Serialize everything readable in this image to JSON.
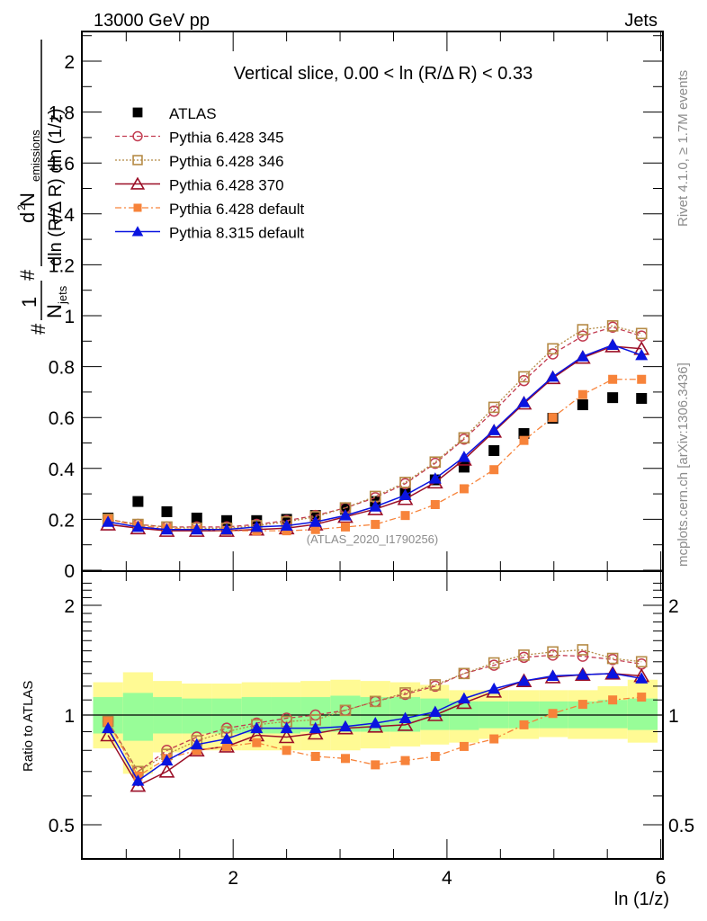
{
  "header": {
    "left_label": "13000 GeV pp",
    "right_label": "Jets"
  },
  "side_labels": {
    "rivet": "Rivet 4.1.0, ≥ 1.7M events",
    "mcplots": "mcplots.cern.ch [arXiv:1306.3436]"
  },
  "watermark": "(ATLAS_2020_I1790256)",
  "chart_data": [
    {
      "panel": "main",
      "type": "line",
      "title": "Vertical slice, 0.00 < ln (R/Δ R) < 0.33",
      "xlabel": "ln (1/z)",
      "ylabel": "1/N_jets d²N_emissions / dln(R/ΔR) dln(1/z)",
      "xlim": [
        0.585,
        6.02
      ],
      "ylim": [
        0,
        2.1
      ],
      "yticks": [
        0,
        0.2,
        0.4,
        0.6,
        0.8,
        1,
        1.2,
        1.4,
        1.6,
        1.8,
        2
      ],
      "ytick_labels": [
        "0",
        "0.2",
        "0.4",
        "0.6",
        "0.8",
        "1",
        "1.2",
        "1.4",
        "1.6",
        "1.8",
        "2"
      ],
      "xticks": [
        2,
        4,
        6
      ],
      "legend_position": "top-left",
      "x": [
        0.83,
        1.11,
        1.38,
        1.66,
        1.94,
        2.22,
        2.5,
        2.77,
        3.05,
        3.33,
        3.61,
        3.89,
        4.16,
        4.44,
        4.72,
        4.99,
        5.27,
        5.55,
        5.82
      ],
      "series": [
        {
          "name": "ATLAS",
          "style": "data",
          "color": "#000000",
          "marker": "square-filled",
          "values": [
            0.205,
            0.27,
            0.23,
            0.205,
            0.195,
            0.195,
            0.2,
            0.215,
            0.24,
            0.27,
            0.305,
            0.355,
            0.405,
            0.47,
            0.537,
            0.597,
            0.65,
            0.678,
            0.675
          ]
        },
        {
          "name": "Pythia 6.428 345",
          "style": "dashed",
          "color": "#c23b50",
          "marker": "circle-open",
          "values": [
            0.2,
            0.18,
            0.17,
            0.17,
            0.17,
            0.18,
            0.195,
            0.215,
            0.245,
            0.285,
            0.34,
            0.42,
            0.515,
            0.625,
            0.745,
            0.85,
            0.92,
            0.955,
            0.92
          ]
        },
        {
          "name": "Pythia 6.428 346",
          "style": "dotted",
          "color": "#b58a45",
          "marker": "square-open",
          "values": [
            0.2,
            0.18,
            0.17,
            0.165,
            0.165,
            0.175,
            0.19,
            0.21,
            0.245,
            0.29,
            0.345,
            0.425,
            0.52,
            0.64,
            0.76,
            0.87,
            0.945,
            0.96,
            0.93
          ]
        },
        {
          "name": "Pythia 6.428 370",
          "style": "solid",
          "color": "#9b0f27",
          "marker": "triangle-open",
          "values": [
            0.18,
            0.165,
            0.155,
            0.155,
            0.155,
            0.16,
            0.165,
            0.18,
            0.21,
            0.24,
            0.28,
            0.345,
            0.435,
            0.545,
            0.655,
            0.755,
            0.835,
            0.88,
            0.87
          ]
        },
        {
          "name": "Pythia 6.428 default",
          "style": "dashdot",
          "color": "#f7833a",
          "marker": "square-filled",
          "values": [
            0.2,
            0.175,
            0.165,
            0.16,
            0.155,
            0.155,
            0.155,
            0.16,
            0.17,
            0.18,
            0.215,
            0.258,
            0.32,
            0.395,
            0.51,
            0.6,
            0.69,
            0.75,
            0.75
          ]
        },
        {
          "name": "Pythia 8.315 default",
          "style": "solid",
          "color": "#0a14e0",
          "marker": "triangle-filled",
          "values": [
            0.19,
            0.17,
            0.16,
            0.16,
            0.16,
            0.17,
            0.175,
            0.19,
            0.215,
            0.25,
            0.295,
            0.36,
            0.445,
            0.55,
            0.66,
            0.76,
            0.84,
            0.885,
            0.845
          ]
        }
      ]
    },
    {
      "panel": "ratio",
      "type": "line",
      "ylabel": "Ratio to ATLAS",
      "xlabel": "ln (1/z)",
      "xlim": [
        0.585,
        6.02
      ],
      "ylim": [
        0.35,
        2.4
      ],
      "yscale": "log",
      "yticks": [
        0.5,
        1,
        2
      ],
      "ytick_labels": [
        "0.5",
        "1",
        "2"
      ],
      "xticks": [
        2,
        4,
        6
      ],
      "xtick_labels": [
        "2",
        "4",
        "6"
      ],
      "reference_line": 1,
      "bands": {
        "outer_color": "#fffa94",
        "inner_color": "#98fd98",
        "bin_edges": [
          0.69,
          0.97,
          1.25,
          1.52,
          1.8,
          2.08,
          2.36,
          2.63,
          2.91,
          3.19,
          3.47,
          3.75,
          4.02,
          4.3,
          4.58,
          4.86,
          5.13,
          5.41,
          5.69,
          5.97
        ],
        "outer_low": [
          0.81,
          0.69,
          0.79,
          0.8,
          0.8,
          0.8,
          0.8,
          0.8,
          0.8,
          0.81,
          0.82,
          0.83,
          0.84,
          0.86,
          0.86,
          0.87,
          0.86,
          0.86,
          0.84
        ],
        "outer_high": [
          1.23,
          1.31,
          1.24,
          1.22,
          1.22,
          1.23,
          1.23,
          1.24,
          1.25,
          1.24,
          1.23,
          1.21,
          1.17,
          1.17,
          1.17,
          1.17,
          1.17,
          1.2,
          1.25
        ],
        "inner_low": [
          0.89,
          0.85,
          0.89,
          0.89,
          0.89,
          0.89,
          0.89,
          0.9,
          0.9,
          0.9,
          0.9,
          0.91,
          0.91,
          0.92,
          0.92,
          0.92,
          0.92,
          0.92,
          0.91
        ],
        "inner_high": [
          1.12,
          1.15,
          1.12,
          1.11,
          1.11,
          1.12,
          1.12,
          1.12,
          1.13,
          1.12,
          1.12,
          1.11,
          1.09,
          1.09,
          1.09,
          1.09,
          1.09,
          1.1,
          1.11
        ]
      },
      "series": [
        {
          "name": "Pythia 6.428 345",
          "values": [
            0.96,
            0.7,
            0.8,
            0.87,
            0.92,
            0.95,
            0.98,
            1.0,
            1.03,
            1.09,
            1.14,
            1.2,
            1.3,
            1.37,
            1.44,
            1.46,
            1.45,
            1.42,
            1.38
          ]
        },
        {
          "name": "Pythia 6.428 346",
          "values": [
            0.96,
            0.7,
            0.78,
            0.85,
            0.9,
            0.94,
            0.96,
            0.97,
            1.03,
            1.09,
            1.15,
            1.21,
            1.3,
            1.39,
            1.46,
            1.49,
            1.51,
            1.43,
            1.4
          ]
        },
        {
          "name": "Pythia 6.428 370",
          "values": [
            0.88,
            0.64,
            0.7,
            0.8,
            0.82,
            0.88,
            0.87,
            0.89,
            0.92,
            0.93,
            0.94,
            1.0,
            1.08,
            1.16,
            1.24,
            1.27,
            1.29,
            1.3,
            1.28
          ]
        },
        {
          "name": "Pythia 6.428 default",
          "values": [
            0.96,
            0.68,
            0.76,
            0.8,
            0.82,
            0.84,
            0.8,
            0.77,
            0.76,
            0.73,
            0.75,
            0.77,
            0.82,
            0.86,
            0.94,
            1.01,
            1.07,
            1.1,
            1.12
          ]
        },
        {
          "name": "Pythia 8.315 default",
          "values": [
            0.92,
            0.66,
            0.75,
            0.83,
            0.86,
            0.92,
            0.92,
            0.92,
            0.93,
            0.95,
            0.98,
            1.02,
            1.11,
            1.18,
            1.24,
            1.28,
            1.29,
            1.3,
            1.26
          ]
        }
      ]
    }
  ],
  "legend": [
    {
      "label": "ATLAS"
    },
    {
      "label": "Pythia 6.428 345"
    },
    {
      "label": "Pythia 6.428 346"
    },
    {
      "label": "Pythia 6.428 370"
    },
    {
      "label": "Pythia 6.428 default"
    },
    {
      "label": "Pythia 8.315 default"
    }
  ],
  "labels": {
    "title": "Vertical slice, 0.00 < ln (R/Δ R) < 0.33",
    "ratio_ylabel": "Ratio to ATLAS",
    "xlabel": "ln (1/z)",
    "ylabel_parts": {
      "hash1": "#",
      "one": "1",
      "njets": "N",
      "jets_sub": "jets",
      "hash2": "#",
      "numerator": "d",
      "sup2": "2",
      "nem": " N",
      "em_sub": "emissions",
      "denominator": "dln (R/Δ R) dln (1/z)"
    },
    "main_ytick_labels": [
      "0",
      "0.2",
      "0.4",
      "0.6",
      "0.8",
      "1",
      "1.2",
      "1.4",
      "1.6",
      "1.8",
      "2"
    ],
    "ratio_ytick_labels": [
      "0.5",
      "1",
      "2"
    ],
    "ratio_ytick_labels_right": [
      "0.5",
      "1",
      "2"
    ],
    "xtick_labels": [
      "2",
      "4",
      "6"
    ]
  }
}
